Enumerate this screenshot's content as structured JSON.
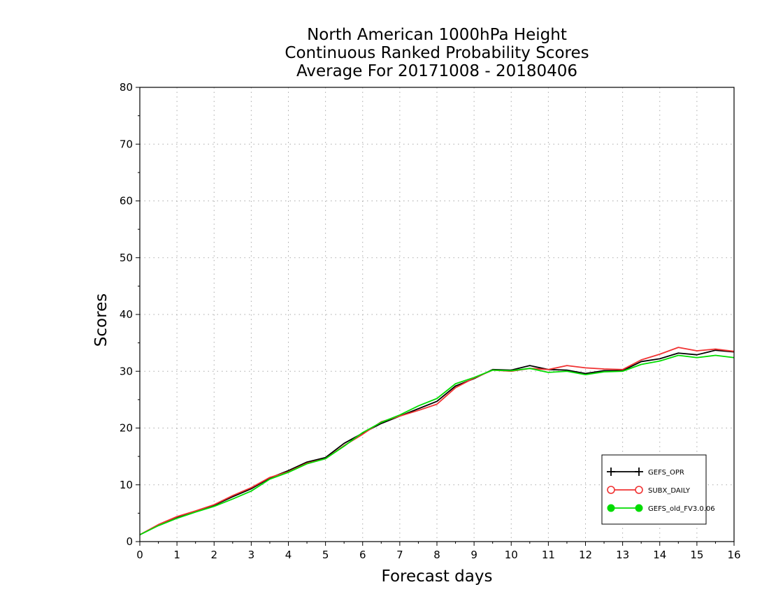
{
  "chart_data": {
    "type": "line",
    "title": [
      "North American 1000hPa Height",
      "Continuous Ranked Probability Scores",
      "Average For 20171008 - 20180406"
    ],
    "xlabel": "Forecast days",
    "ylabel": "Scores",
    "xlim": [
      0,
      16
    ],
    "ylim": [
      0,
      80
    ],
    "xticks": [
      0,
      1,
      2,
      3,
      4,
      5,
      6,
      7,
      8,
      9,
      10,
      11,
      12,
      13,
      14,
      15,
      16
    ],
    "yticks": [
      0,
      10,
      20,
      30,
      40,
      50,
      60,
      70,
      80
    ],
    "grid": true,
    "legend_position": "bottom-right",
    "x": [
      0,
      0.5,
      1,
      1.5,
      2,
      2.5,
      3,
      3.5,
      4,
      4.5,
      5,
      5.5,
      6,
      6.5,
      7,
      7.5,
      8,
      8.5,
      9,
      9.5,
      10,
      10.5,
      11,
      11.5,
      12,
      12.5,
      13,
      13.5,
      14,
      14.5,
      15,
      15.5,
      16
    ],
    "series": [
      {
        "name": "GEFS_OPR",
        "color": "#000000",
        "marker": "plus",
        "values": [
          1.2,
          2.9,
          4.3,
          5.3,
          6.4,
          7.9,
          9.3,
          11.2,
          12.5,
          14.0,
          14.8,
          17.3,
          19.1,
          20.8,
          22.1,
          23.4,
          24.7,
          27.4,
          28.7,
          30.3,
          30.2,
          31.0,
          30.3,
          30.2,
          29.6,
          30.1,
          30.1,
          31.7,
          32.2,
          33.2,
          32.9,
          33.7,
          33.4
        ]
      },
      {
        "name": "SUBX_DAILY",
        "color": "#f03232",
        "marker": "open-circle",
        "values": [
          1.2,
          3.0,
          4.4,
          5.4,
          6.5,
          8.1,
          9.5,
          11.3,
          12.3,
          13.8,
          14.6,
          16.9,
          18.9,
          21.1,
          22.1,
          23.1,
          24.2,
          27.1,
          28.8,
          30.2,
          30.0,
          30.5,
          30.3,
          31.0,
          30.6,
          30.4,
          30.3,
          32.0,
          33.0,
          34.2,
          33.6,
          33.9,
          33.5
        ]
      },
      {
        "name": "GEFS_old_FV3.0.06",
        "color": "#00dc00",
        "marker": "filled-circle",
        "values": [
          1.2,
          2.8,
          4.1,
          5.2,
          6.2,
          7.5,
          8.9,
          11.0,
          12.2,
          13.7,
          14.6,
          16.8,
          19.2,
          21.0,
          22.3,
          23.9,
          25.2,
          27.8,
          28.9,
          30.2,
          30.1,
          30.5,
          29.8,
          30.0,
          29.4,
          29.9,
          30.0,
          31.2,
          31.8,
          32.8,
          32.4,
          32.8,
          32.4
        ]
      }
    ]
  }
}
